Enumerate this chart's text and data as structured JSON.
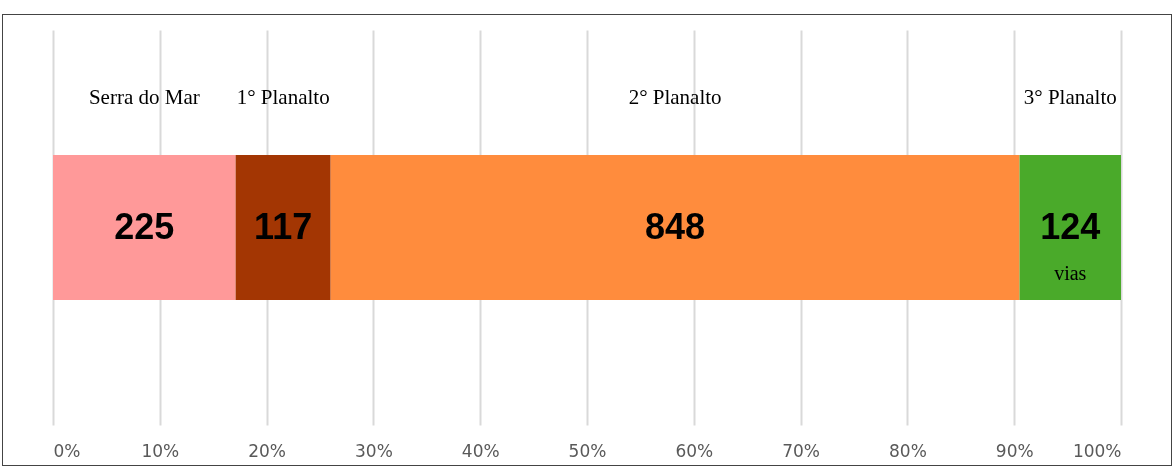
{
  "chart_data": {
    "type": "bar",
    "orientation": "horizontal",
    "stacked": true,
    "categories": [
      null
    ],
    "series": [
      {
        "name": "Serra do Mar",
        "color": "#ff9999",
        "values": [
          17.1
        ]
      },
      {
        "name": "1° Planalto",
        "color": "#a33603",
        "values": [
          8.9
        ]
      },
      {
        "name": "2° Planalto",
        "color": "#ff8c3d",
        "values": [
          64.5
        ]
      },
      {
        "name": "3° Planalto",
        "color": "#4aaa2a",
        "values": [
          9.5
        ]
      }
    ],
    "xlim": [
      0,
      100
    ],
    "xticks": [
      {
        "value": 0,
        "label": "0%"
      },
      {
        "value": 10,
        "label": "10%"
      },
      {
        "value": 20,
        "label": "20%"
      },
      {
        "value": 30,
        "label": "30%"
      },
      {
        "value": 40,
        "label": "40%"
      },
      {
        "value": 50,
        "label": "50%"
      },
      {
        "value": 60,
        "label": "60%"
      },
      {
        "value": 70,
        "label": "70%"
      },
      {
        "value": 80,
        "label": "80%"
      },
      {
        "value": 90,
        "label": "90%"
      },
      {
        "value": 100,
        "label": "100%"
      }
    ],
    "grid": "x",
    "legend": false,
    "annotations": [
      "225",
      "117",
      "848",
      "124",
      "vias"
    ]
  }
}
